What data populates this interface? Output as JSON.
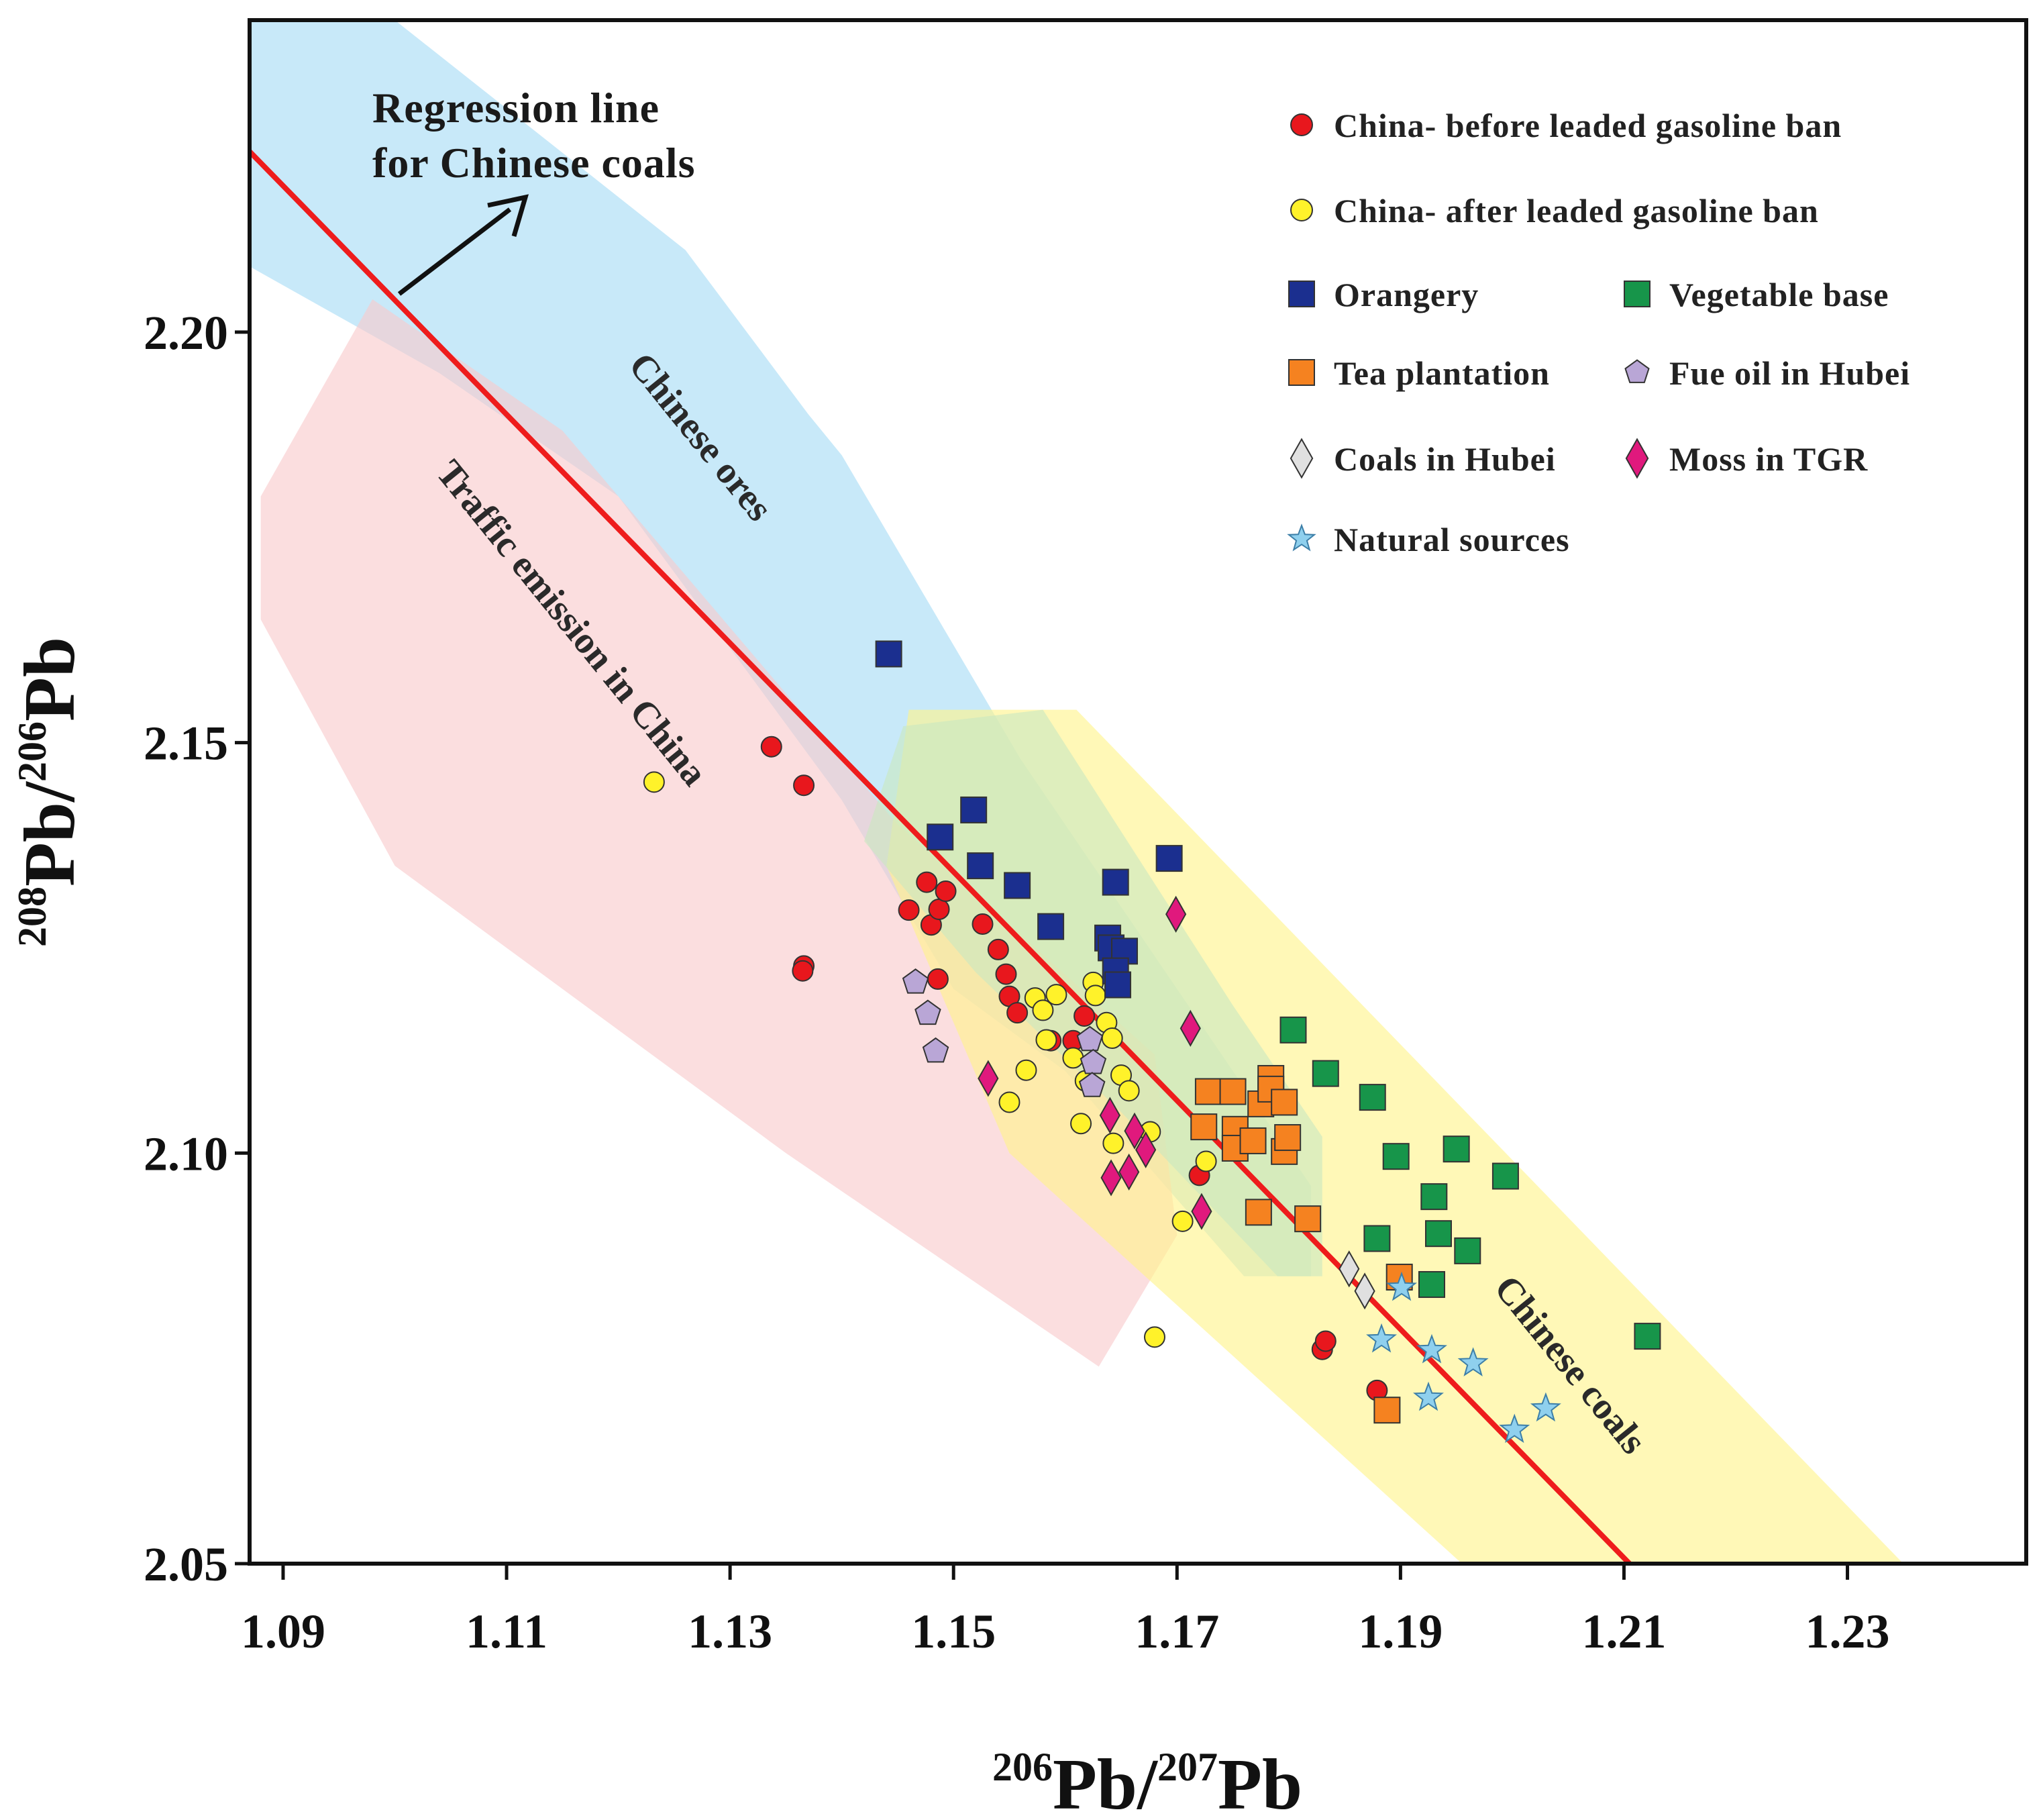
{
  "chart_data": {
    "type": "scatter",
    "xlabel": {
      "sup": "206",
      "base": "Pb/",
      "sup2": "207",
      "base2": "Pb"
    },
    "ylabel": {
      "sup": "208",
      "base": "Pb/",
      "sup2": "206",
      "base2": "Pb"
    },
    "xlim": [
      1.087,
      1.246
    ],
    "ylim": [
      2.05,
      2.238
    ],
    "xticks": [
      1.09,
      1.11,
      1.13,
      1.15,
      1.17,
      1.19,
      1.21,
      1.23
    ],
    "xtick_labels": [
      "1.09",
      "1.11",
      "1.13",
      "1.15",
      "1.17",
      "1.19",
      "1.21",
      "1.23"
    ],
    "yticks": [
      2.05,
      2.1,
      2.15,
      2.2
    ],
    "ytick_labels": [
      "2.05",
      "2.10",
      "2.15",
      "2.20"
    ],
    "regression_line": {
      "label": "Regression line\nfor Chinese coals",
      "from": [
        1.087,
        2.222
      ],
      "to": [
        1.2105,
        2.05
      ],
      "color": "#ee1c1c"
    },
    "regions": [
      {
        "label": "Chinese ores",
        "color": "#a6dcf5",
        "polygon": [
          [
            1.087,
            2.238
          ],
          [
            1.1,
            2.238
          ],
          [
            1.126,
            2.21
          ],
          [
            1.137,
            2.19
          ],
          [
            1.14,
            2.185
          ],
          [
            1.156,
            2.148
          ],
          [
            1.182,
            2.096
          ],
          [
            1.182,
            2.085
          ],
          [
            1.176,
            2.085
          ],
          [
            1.16,
            2.11
          ],
          [
            1.15,
            2.12
          ],
          [
            1.14,
            2.143
          ],
          [
            1.12,
            2.18
          ],
          [
            1.104,
            2.195
          ],
          [
            1.087,
            2.208
          ]
        ]
      },
      {
        "label": "Traffic emission in China",
        "color": "#f9c9cc",
        "polygon": [
          [
            1.098,
            2.204
          ],
          [
            1.115,
            2.188
          ],
          [
            1.145,
            2.14
          ],
          [
            1.168,
            2.112
          ],
          [
            1.17,
            2.09
          ],
          [
            1.163,
            2.074
          ],
          [
            1.135,
            2.1
          ],
          [
            1.1,
            2.135
          ],
          [
            1.088,
            2.165
          ],
          [
            1.088,
            2.18
          ]
        ]
      },
      {
        "label": "Chinese coals",
        "color": "#fff38a",
        "polygon": [
          [
            1.146,
            2.154
          ],
          [
            1.161,
            2.154
          ],
          [
            1.235,
            2.05
          ],
          [
            1.1955,
            2.05
          ],
          [
            1.155,
            2.1
          ],
          [
            1.144,
            2.135
          ]
        ]
      },
      {
        "label": "",
        "color": "#c9e8c0",
        "polygon": [
          [
            1.1455,
            2.152
          ],
          [
            1.158,
            2.154
          ],
          [
            1.175,
            2.118
          ],
          [
            1.183,
            2.102
          ],
          [
            1.183,
            2.085
          ],
          [
            1.179,
            2.085
          ],
          [
            1.165,
            2.105
          ],
          [
            1.152,
            2.122
          ],
          [
            1.142,
            2.138
          ]
        ]
      }
    ],
    "series": [
      {
        "name": "China- before leaded gasoline ban",
        "marker": "circle",
        "color": "#e8171d",
        "points": [
          [
            1.1337,
            2.1495
          ],
          [
            1.1366,
            2.1448
          ],
          [
            1.1366,
            2.1228
          ],
          [
            1.1365,
            2.1222
          ],
          [
            1.146,
            2.1296
          ],
          [
            1.1476,
            2.133
          ],
          [
            1.148,
            2.1278
          ],
          [
            1.1487,
            2.1297
          ],
          [
            1.1493,
            2.1319
          ],
          [
            1.1486,
            2.1212
          ],
          [
            1.1526,
            2.1279
          ],
          [
            1.154,
            2.1248
          ],
          [
            1.1547,
            2.1218
          ],
          [
            1.155,
            2.1191
          ],
          [
            1.1557,
            2.1171
          ],
          [
            1.1587,
            2.1137
          ],
          [
            1.1607,
            2.1137
          ],
          [
            1.1617,
            2.1167
          ],
          [
            1.172,
            2.0973
          ],
          [
            1.183,
            2.0761
          ],
          [
            1.1833,
            2.0771
          ],
          [
            1.1879,
            2.0711
          ]
        ]
      },
      {
        "name": "China- after leaded gasoline ban",
        "marker": "circle",
        "color": "#fff22a",
        "points": [
          [
            1.1232,
            2.1452
          ],
          [
            1.155,
            2.1062
          ],
          [
            1.1565,
            2.1101
          ],
          [
            1.1573,
            2.1189
          ],
          [
            1.158,
            2.1174
          ],
          [
            1.1583,
            2.1138
          ],
          [
            1.1592,
            2.1193
          ],
          [
            1.1607,
            2.1116
          ],
          [
            1.1614,
            2.1036
          ],
          [
            1.1618,
            2.1088
          ],
          [
            1.1625,
            2.1208
          ],
          [
            1.1627,
            2.1192
          ],
          [
            1.1637,
            2.1159
          ],
          [
            1.1643,
            2.1012
          ],
          [
            1.165,
            2.1095
          ],
          [
            1.1657,
            2.1076
          ],
          [
            1.1676,
            2.1026
          ],
          [
            1.168,
            2.0776
          ],
          [
            1.1705,
            2.0917
          ],
          [
            1.1726,
            2.099
          ],
          [
            1.1642,
            2.114
          ]
        ]
      },
      {
        "name": "Orangery",
        "marker": "square",
        "color": "#1b2f8f",
        "points": [
          [
            1.1442,
            2.1608
          ],
          [
            1.1488,
            2.1385
          ],
          [
            1.1518,
            2.1418
          ],
          [
            1.1524,
            2.135
          ],
          [
            1.1557,
            2.1326
          ],
          [
            1.1587,
            2.1276
          ],
          [
            1.1645,
            2.133
          ],
          [
            1.1638,
            2.1262
          ],
          [
            1.1641,
            2.125
          ],
          [
            1.1653,
            2.1246
          ],
          [
            1.1645,
            2.1222
          ],
          [
            1.1647,
            2.1205
          ],
          [
            1.1693,
            2.1359
          ]
        ]
      },
      {
        "name": "Vegetable base",
        "marker": "square",
        "color": "#17954a",
        "points": [
          [
            1.1804,
            2.115
          ],
          [
            1.1833,
            2.1097
          ],
          [
            1.1875,
            2.1068
          ],
          [
            1.1896,
            2.0996
          ],
          [
            1.1879,
            2.0896
          ],
          [
            1.193,
            2.0947
          ],
          [
            1.1934,
            2.0902
          ],
          [
            1.1928,
            2.084
          ],
          [
            1.195,
            2.1005
          ],
          [
            1.196,
            2.0881
          ],
          [
            1.1994,
            2.0972
          ],
          [
            1.2121,
            2.0777
          ]
        ]
      },
      {
        "name": "Tea plantation",
        "marker": "square",
        "color": "#f58220",
        "points": [
          [
            1.1728,
            2.1075
          ],
          [
            1.1724,
            2.1032
          ],
          [
            1.175,
            2.1075
          ],
          [
            1.1752,
            2.1029
          ],
          [
            1.1752,
            2.1006
          ],
          [
            1.1768,
            2.1015
          ],
          [
            1.1775,
            2.106
          ],
          [
            1.1784,
            2.1091
          ],
          [
            1.1784,
            2.1078
          ],
          [
            1.1796,
            2.1062
          ],
          [
            1.1796,
            2.1002
          ],
          [
            1.1799,
            2.1019
          ],
          [
            1.1773,
            2.0928
          ],
          [
            1.1817,
            2.092
          ],
          [
            1.1899,
            2.0849
          ],
          [
            1.1888,
            2.0687
          ]
        ]
      },
      {
        "name": "Fue oil in Hubei",
        "marker": "pentagon",
        "color": "#b9a6d6",
        "points": [
          [
            1.1466,
            2.1208
          ],
          [
            1.1477,
            2.117
          ],
          [
            1.1484,
            2.1124
          ],
          [
            1.1622,
            2.1138
          ],
          [
            1.1625,
            2.111
          ],
          [
            1.1624,
            2.1082
          ]
        ]
      },
      {
        "name": "Coals in Hubei",
        "marker": "diamond",
        "color": "#e0e0e0",
        "points": [
          [
            1.1854,
            2.0859
          ],
          [
            1.1868,
            2.0832
          ]
        ]
      },
      {
        "name": "Moss in TGR",
        "marker": "diamond",
        "color": "#e0197d",
        "points": [
          [
            1.1699,
            2.1291
          ],
          [
            1.1712,
            2.1152
          ],
          [
            1.1531,
            2.1091
          ],
          [
            1.164,
            2.1046
          ],
          [
            1.1662,
            2.1027
          ],
          [
            1.1672,
            2.1004
          ],
          [
            1.1641,
            2.097
          ],
          [
            1.1657,
            2.0977
          ],
          [
            1.1722,
            2.0929
          ]
        ]
      },
      {
        "name": "Natural sources",
        "marker": "star",
        "color": "#8fd0ee",
        "points": [
          [
            1.1901,
            2.0836
          ],
          [
            1.1883,
            2.0773
          ],
          [
            1.1928,
            2.076
          ],
          [
            1.1965,
            2.0744
          ],
          [
            1.1925,
            2.0702
          ],
          [
            1.203,
            2.0689
          ],
          [
            1.2002,
            2.0663
          ]
        ]
      }
    ],
    "legend": {
      "placement": "top-right",
      "entries": [
        {
          "label": "China- before leaded gasoline ban",
          "marker": "circle",
          "color": "#e8171d"
        },
        {
          "label": "China- after leaded gasoline ban",
          "marker": "circle",
          "color": "#fff22a"
        },
        {
          "label": "Orangery",
          "marker": "square",
          "color": "#1b2f8f"
        },
        {
          "label": "Vegetable base",
          "marker": "square",
          "color": "#17954a"
        },
        {
          "label": "Tea plantation",
          "marker": "square",
          "color": "#f58220"
        },
        {
          "label": "Fue oil in Hubei",
          "marker": "pentagon",
          "color": "#b9a6d6"
        },
        {
          "label": "Coals in Hubei",
          "marker": "diamond",
          "color": "#e0e0e0"
        },
        {
          "label": "Moss in TGR",
          "marker": "diamond",
          "color": "#e0197d"
        },
        {
          "label": "Natural sources",
          "marker": "star",
          "color": "#8fd0ee"
        }
      ]
    },
    "grid": false
  }
}
